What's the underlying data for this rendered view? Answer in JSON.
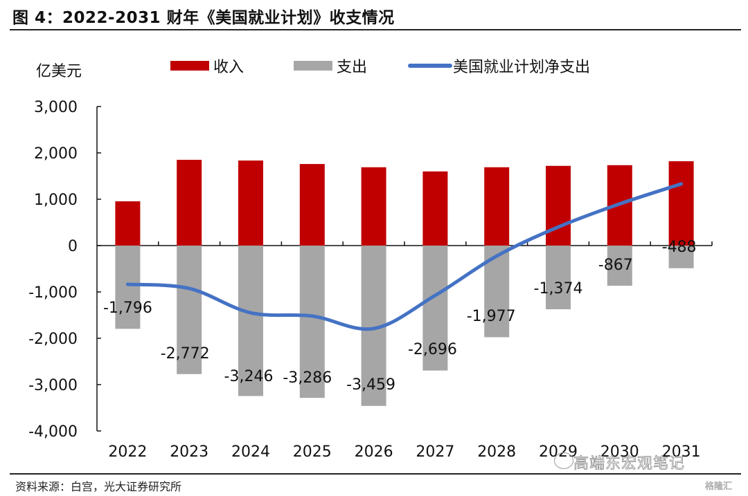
{
  "title": "图 4：2022-2031 财年《美国就业计划》收支情况",
  "source": "资料来源：白宫，光大证券研究所",
  "watermark": "高端东宏观笔记",
  "watermark2": "格隆汇",
  "colors": {
    "revenue": "#C00000",
    "expenditure": "#A6A6A6",
    "net": "#4472C4"
  },
  "chart_data": {
    "type": "bar",
    "title": "2022-2031 财年《美国就业计划》收支情况",
    "ylabel": "亿美元",
    "xlabel": "",
    "ylim": [
      -4000,
      3000
    ],
    "yticks": [
      3000,
      2000,
      1000,
      0,
      -1000,
      -2000,
      -3000,
      -4000
    ],
    "ytick_labels": [
      "3,000",
      "2,000",
      "1,000",
      "0",
      "-1,000",
      "-2,000",
      "-3,000",
      "-4,000"
    ],
    "categories": [
      "2022",
      "2023",
      "2024",
      "2025",
      "2026",
      "2027",
      "2028",
      "2029",
      "2030",
      "2031"
    ],
    "legend_position": "top",
    "grid": false,
    "series": [
      {
        "name": "收入",
        "type": "bar",
        "values": [
          955,
          1850,
          1835,
          1760,
          1690,
          1600,
          1690,
          1720,
          1735,
          1820
        ]
      },
      {
        "name": "支出",
        "type": "bar",
        "values": [
          -1796,
          -2772,
          -3246,
          -3286,
          -3459,
          -2696,
          -1977,
          -1374,
          -867,
          -488
        ],
        "labels": [
          "-1,796",
          "-2,772",
          "-3,246",
          "-3,286",
          "-3,459",
          "-2,696",
          "-1,977",
          "-1,374",
          "-867",
          "-488"
        ]
      },
      {
        "name": "美国就业计划净支出",
        "type": "line",
        "values": [
          -835,
          -925,
          -1450,
          -1520,
          -1790,
          -1075,
          -225,
          400,
          900,
          1330
        ]
      }
    ]
  }
}
